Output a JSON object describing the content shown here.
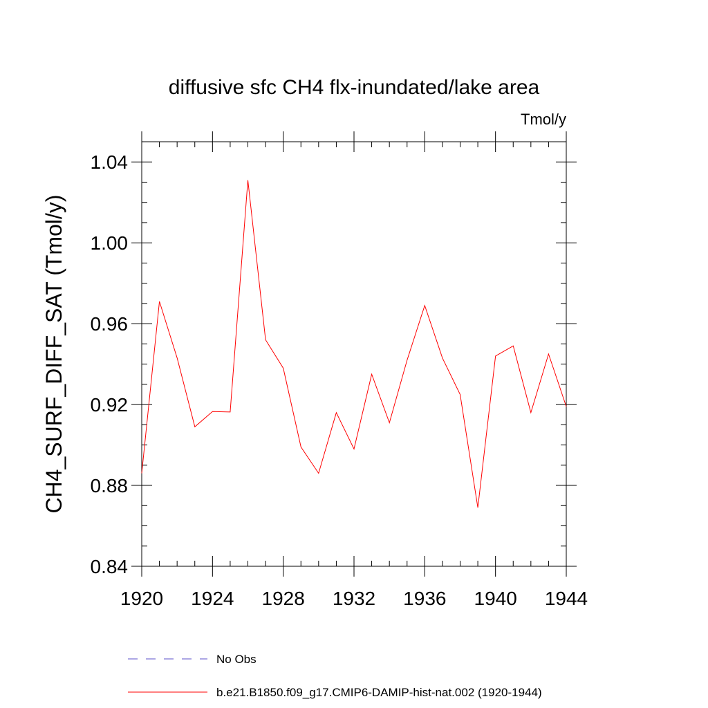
{
  "chart_data": {
    "type": "line",
    "title": "diffusive sfc CH4 flx-inundated/lake area",
    "units_label": "Tmol/y",
    "ylabel": "CH4_SURF_DIFF_SAT  (Tmol/y)",
    "xlabel": "",
    "xlim": [
      1920,
      1944
    ],
    "ylim": [
      0.84,
      1.05
    ],
    "x_ticks": [
      1920,
      1924,
      1928,
      1932,
      1936,
      1940,
      1944
    ],
    "x_tick_labels": [
      "1920",
      "1924",
      "1928",
      "1932",
      "1936",
      "1940",
      "1944"
    ],
    "y_ticks": [
      0.84,
      0.88,
      0.92,
      0.96,
      1.0,
      1.04
    ],
    "y_tick_labels": [
      "0.84",
      "0.88",
      "0.92",
      "0.96",
      "1.00",
      "1.04"
    ],
    "x_minor_step": 1,
    "y_minor_step": 0.01,
    "grid": false,
    "legend_position": "bottom-center",
    "series": [
      {
        "name": "b.e21.B1850.f09_g17.CMIP6-DAMIP-hist-nat.002 (1920-1944)",
        "color": "#ff0000",
        "line_style": "solid",
        "x": [
          1920,
          1921,
          1922,
          1923,
          1924,
          1925,
          1926,
          1927,
          1928,
          1929,
          1930,
          1931,
          1932,
          1933,
          1934,
          1935,
          1936,
          1937,
          1938,
          1939,
          1940,
          1941,
          1942,
          1943,
          1944
        ],
        "values": [
          0.886,
          0.971,
          0.943,
          0.909,
          0.9165,
          0.9163,
          1.031,
          0.952,
          0.938,
          0.899,
          0.886,
          0.916,
          0.898,
          0.935,
          0.911,
          0.942,
          0.969,
          0.943,
          0.925,
          0.869,
          0.944,
          0.949,
          0.916,
          0.945,
          0.919
        ]
      }
    ],
    "legend": [
      {
        "label": "No Obs",
        "color": "#5a4fc8",
        "line_style": "dashed"
      },
      {
        "label": "b.e21.B1850.f09_g17.CMIP6-DAMIP-hist-nat.002 (1920-1944)",
        "color": "#ff0000",
        "line_style": "solid"
      }
    ]
  }
}
